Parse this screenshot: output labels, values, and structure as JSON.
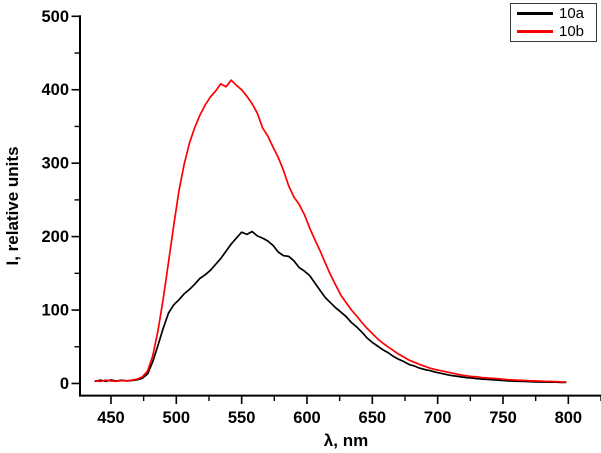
{
  "figure": {
    "xlabel": "λ, nm",
    "ylabel": "I, relative units"
  },
  "legend": {
    "items": [
      {
        "label": "10a",
        "color": "#000000"
      },
      {
        "label": "10b",
        "color": "#ff0000"
      }
    ]
  },
  "chart_data": {
    "type": "line",
    "title": "",
    "xlabel": "λ, nm",
    "ylabel": "I, relative units",
    "xlim": [
      425,
      825
    ],
    "ylim": [
      -16.5,
      500
    ],
    "x_ticks": [
      450,
      500,
      550,
      600,
      650,
      700,
      750,
      800
    ],
    "y_ticks": [
      0,
      100,
      200,
      300,
      400,
      500
    ],
    "x_minor_step": 25,
    "y_minor_step": 50,
    "grid": false,
    "legend_position": "top-right",
    "series": [
      {
        "name": "10a",
        "color": "#000000",
        "points": [
          [
            438,
            3
          ],
          [
            442,
            4.5
          ],
          [
            446,
            3
          ],
          [
            450,
            4.8
          ],
          [
            454,
            3.2
          ],
          [
            458,
            4.5
          ],
          [
            462,
            3.5
          ],
          [
            466,
            4
          ],
          [
            470,
            5
          ],
          [
            474,
            7
          ],
          [
            478,
            13
          ],
          [
            482,
            30
          ],
          [
            486,
            52
          ],
          [
            490,
            75
          ],
          [
            494,
            96
          ],
          [
            498,
            107
          ],
          [
            502,
            114
          ],
          [
            506,
            122
          ],
          [
            510,
            128
          ],
          [
            514,
            135
          ],
          [
            518,
            143
          ],
          [
            522,
            148
          ],
          [
            526,
            154
          ],
          [
            530,
            162
          ],
          [
            534,
            170
          ],
          [
            538,
            180
          ],
          [
            542,
            190
          ],
          [
            546,
            198
          ],
          [
            550,
            206
          ],
          [
            554,
            203
          ],
          [
            558,
            207
          ],
          [
            562,
            201
          ],
          [
            566,
            198
          ],
          [
            570,
            194
          ],
          [
            574,
            188
          ],
          [
            578,
            179
          ],
          [
            582,
            174
          ],
          [
            586,
            173
          ],
          [
            590,
            167
          ],
          [
            594,
            158
          ],
          [
            598,
            153
          ],
          [
            602,
            147
          ],
          [
            606,
            137
          ],
          [
            610,
            127
          ],
          [
            614,
            117
          ],
          [
            618,
            110
          ],
          [
            622,
            103
          ],
          [
            626,
            97
          ],
          [
            630,
            91
          ],
          [
            634,
            83
          ],
          [
            638,
            77
          ],
          [
            642,
            70
          ],
          [
            646,
            62
          ],
          [
            650,
            56
          ],
          [
            654,
            51
          ],
          [
            658,
            46
          ],
          [
            662,
            42
          ],
          [
            666,
            37
          ],
          [
            670,
            33
          ],
          [
            674,
            30
          ],
          [
            678,
            26
          ],
          [
            682,
            24
          ],
          [
            686,
            21
          ],
          [
            690,
            19
          ],
          [
            694,
            17.5
          ],
          [
            698,
            15.5
          ],
          [
            702,
            14
          ],
          [
            706,
            12.5
          ],
          [
            710,
            11
          ],
          [
            714,
            10
          ],
          [
            718,
            9
          ],
          [
            722,
            8
          ],
          [
            726,
            7.5
          ],
          [
            730,
            6.5
          ],
          [
            734,
            6
          ],
          [
            738,
            5.5
          ],
          [
            742,
            5
          ],
          [
            746,
            4.5
          ],
          [
            750,
            4
          ],
          [
            754,
            3.5
          ],
          [
            758,
            3.2
          ],
          [
            762,
            3
          ],
          [
            766,
            2.8
          ],
          [
            770,
            2.5
          ],
          [
            774,
            2.2
          ],
          [
            778,
            2
          ],
          [
            782,
            2
          ],
          [
            786,
            1.8
          ],
          [
            790,
            1.8
          ],
          [
            794,
            1.5
          ],
          [
            798,
            1.5
          ]
        ]
      },
      {
        "name": "10b",
        "color": "#ff0000",
        "points": [
          [
            438,
            3.5
          ],
          [
            442,
            3
          ],
          [
            446,
            4.5
          ],
          [
            450,
            3.5
          ],
          [
            454,
            3
          ],
          [
            458,
            4
          ],
          [
            462,
            3.5
          ],
          [
            466,
            4.5
          ],
          [
            470,
            6
          ],
          [
            474,
            9
          ],
          [
            478,
            17
          ],
          [
            482,
            38
          ],
          [
            486,
            72
          ],
          [
            490,
            115
          ],
          [
            494,
            165
          ],
          [
            498,
            215
          ],
          [
            502,
            262
          ],
          [
            506,
            298
          ],
          [
            510,
            327
          ],
          [
            514,
            348
          ],
          [
            518,
            365
          ],
          [
            522,
            379
          ],
          [
            526,
            390
          ],
          [
            530,
            398
          ],
          [
            534,
            408
          ],
          [
            538,
            404
          ],
          [
            542,
            413
          ],
          [
            546,
            406
          ],
          [
            550,
            400
          ],
          [
            554,
            391
          ],
          [
            558,
            381
          ],
          [
            562,
            368
          ],
          [
            566,
            348
          ],
          [
            570,
            337
          ],
          [
            574,
            322
          ],
          [
            578,
            308
          ],
          [
            582,
            290
          ],
          [
            586,
            269
          ],
          [
            590,
            254
          ],
          [
            594,
            244
          ],
          [
            598,
            230
          ],
          [
            602,
            212
          ],
          [
            606,
            196
          ],
          [
            610,
            181
          ],
          [
            614,
            164
          ],
          [
            618,
            148
          ],
          [
            622,
            134
          ],
          [
            626,
            120
          ],
          [
            630,
            110
          ],
          [
            634,
            100
          ],
          [
            638,
            92
          ],
          [
            642,
            83
          ],
          [
            646,
            75
          ],
          [
            650,
            68
          ],
          [
            654,
            61
          ],
          [
            658,
            55
          ],
          [
            662,
            50
          ],
          [
            666,
            45
          ],
          [
            670,
            40
          ],
          [
            674,
            36
          ],
          [
            678,
            32
          ],
          [
            682,
            29
          ],
          [
            686,
            26
          ],
          [
            690,
            23.5
          ],
          [
            694,
            21
          ],
          [
            698,
            19
          ],
          [
            702,
            17.5
          ],
          [
            706,
            16
          ],
          [
            710,
            14.5
          ],
          [
            714,
            13
          ],
          [
            718,
            11.5
          ],
          [
            722,
            10.5
          ],
          [
            726,
            9.5
          ],
          [
            730,
            9
          ],
          [
            734,
            8
          ],
          [
            738,
            7.5
          ],
          [
            742,
            7
          ],
          [
            746,
            6.5
          ],
          [
            750,
            5.8
          ],
          [
            754,
            5.2
          ],
          [
            758,
            4.8
          ],
          [
            762,
            4.5
          ],
          [
            766,
            4
          ],
          [
            770,
            3.8
          ],
          [
            774,
            3.5
          ],
          [
            778,
            3.2
          ],
          [
            782,
            3
          ],
          [
            786,
            2.8
          ],
          [
            790,
            2.5
          ],
          [
            794,
            2.2
          ],
          [
            798,
            2
          ]
        ]
      }
    ]
  }
}
